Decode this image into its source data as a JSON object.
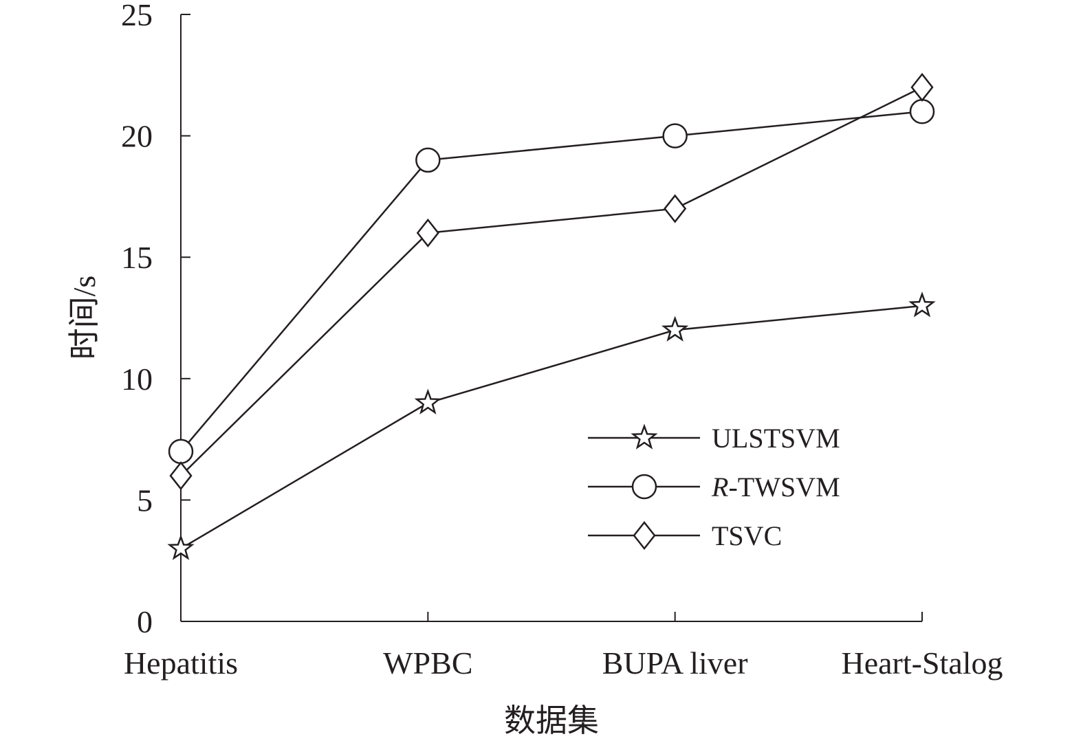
{
  "chart_data": {
    "type": "line",
    "title": "",
    "xlabel": "数据集",
    "ylabel": "时间/s",
    "categories": [
      "Hepatitis",
      "WPBC",
      "BUPA liver",
      "Heart-Stalog"
    ],
    "ylim": [
      0,
      25
    ],
    "yticks": [
      "0",
      "5",
      "10",
      "15",
      "20",
      "25"
    ],
    "grid": false,
    "legend_position": "lower-right",
    "series": [
      {
        "name": "ULSTSVM",
        "name_prefix": "",
        "name_suffix": "ULSTSVM",
        "marker": "star",
        "values": [
          3,
          9,
          12,
          13
        ]
      },
      {
        "name": "R-TWSVM",
        "name_prefix": "R",
        "name_suffix": "-TWSVM",
        "marker": "circle",
        "values": [
          7,
          19,
          20,
          21
        ]
      },
      {
        "name": "TSVC",
        "name_prefix": "",
        "name_suffix": "TSVC",
        "marker": "diamond",
        "values": [
          6,
          16,
          17,
          22
        ]
      }
    ],
    "colors": {
      "line": "#231f20",
      "marker_fill": "#ffffff"
    }
  }
}
